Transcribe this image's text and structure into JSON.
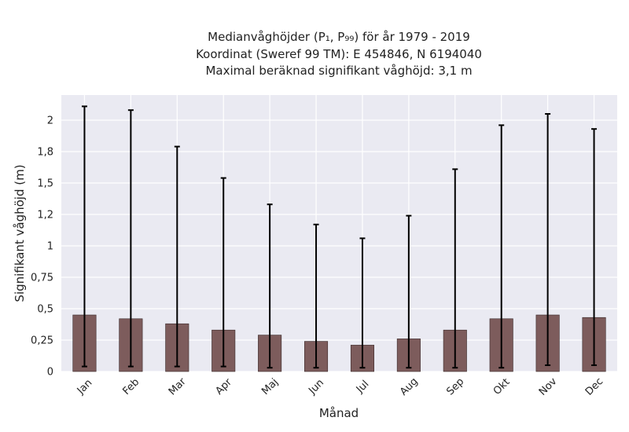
{
  "chart_data": {
    "type": "bar",
    "title": "Medianvåghöjder (P₁, P₉₉) för år 1979 - 2019",
    "subtitle_lines": [
      "Koordinat (Sweref 99 TM): E 454846, N 6194040",
      "Maximal beräknad signifikant våghöjd: 3,1 m"
    ],
    "xlabel": "Månad",
    "ylabel": "Signifikant våghöjd (m)",
    "categories": [
      "Jan",
      "Feb",
      "Mar",
      "Apr",
      "Maj",
      "Jun",
      "Jul",
      "Aug",
      "Sep",
      "Okt",
      "Nov",
      "Dec"
    ],
    "values": [
      0.45,
      0.42,
      0.38,
      0.33,
      0.29,
      0.24,
      0.21,
      0.26,
      0.33,
      0.42,
      0.45,
      0.43
    ],
    "p1": [
      0.04,
      0.04,
      0.04,
      0.04,
      0.03,
      0.03,
      0.03,
      0.03,
      0.03,
      0.03,
      0.05,
      0.05
    ],
    "p99": [
      2.11,
      2.08,
      1.79,
      1.54,
      1.33,
      1.17,
      1.06,
      1.24,
      1.61,
      1.96,
      2.05,
      1.93
    ],
    "yticks": [
      0,
      0.25,
      0.5,
      0.75,
      1,
      1.25,
      1.5,
      1.75,
      2
    ],
    "ytick_labels": [
      "0",
      "0,25",
      "0,5",
      "0,75",
      "1",
      "1,2",
      "1,5",
      "1,8",
      "2"
    ],
    "ylim": [
      0,
      2.2
    ],
    "grid": true,
    "colors": {
      "bar": "#7d5c5c",
      "bar_edge": "#3a2a2a",
      "errorbar": "#000000",
      "plot_background": "#eaeaf2",
      "grid": "#ffffff"
    }
  }
}
